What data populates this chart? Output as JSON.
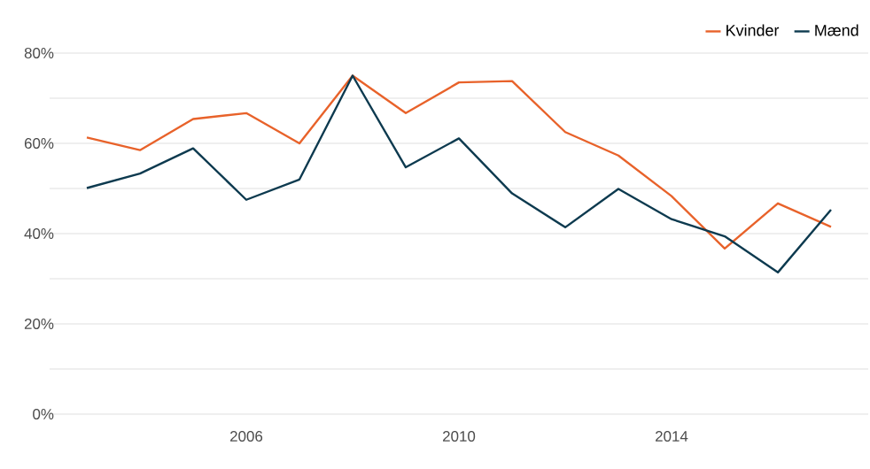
{
  "chart_data": {
    "type": "line",
    "x": [
      2003,
      2004,
      2005,
      2006,
      2007,
      2008,
      2009,
      2010,
      2011,
      2012,
      2013,
      2014,
      2015,
      2016,
      2017
    ],
    "series": [
      {
        "name": "Kvinder",
        "color": "#e8622a",
        "values": [
          61.3,
          58.5,
          65.4,
          66.7,
          60,
          75,
          66.7,
          73.5,
          73.8,
          62.5,
          57.3,
          48.3,
          36.7,
          46.7,
          41.5
        ]
      },
      {
        "name": "Mænd",
        "color": "#0d3a4f",
        "values": [
          50.1,
          53.3,
          58.9,
          47.5,
          52,
          75,
          54.7,
          61.1,
          48.9,
          41.4,
          49.9,
          43.2,
          39.4,
          31.4,
          45.3
        ]
      }
    ],
    "xlim": [
      2002.3,
      2017.7
    ],
    "xticks": [
      2006,
      2010,
      2014
    ],
    "ylim": [
      0,
      80
    ],
    "yticks": [
      {
        "value": 0,
        "label": "0%"
      },
      {
        "value": 10,
        "label": null
      },
      {
        "value": 20,
        "label": "20%"
      },
      {
        "value": 30,
        "label": null
      },
      {
        "value": 40,
        "label": "40%"
      },
      {
        "value": 50,
        "label": null
      },
      {
        "value": 60,
        "label": "60%"
      },
      {
        "value": 70,
        "label": null
      },
      {
        "value": 80,
        "label": "80%"
      }
    ],
    "grid": "y",
    "legend": "top right",
    "marker": "none",
    "line_style": "solid"
  }
}
